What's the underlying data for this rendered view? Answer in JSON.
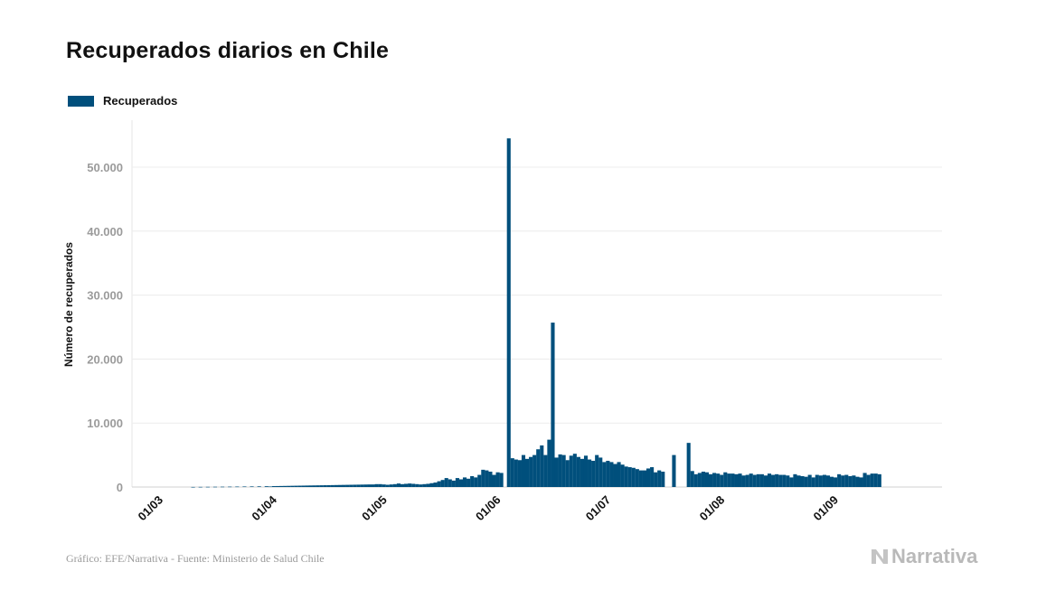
{
  "title": "Recuperados diarios en Chile",
  "legend": {
    "label": "Recuperados",
    "color": "#004f7c"
  },
  "footer": {
    "source": "Gráfico: EFE/Narrativa - Fuente: Ministerio de Salud Chile"
  },
  "logo": {
    "text": "Narrativa",
    "icon": "narrativa-logo-icon"
  },
  "chart_data": {
    "type": "bar",
    "ylabel": "Número de recuperados",
    "ylim": [
      0,
      57500
    ],
    "yticks": [
      0,
      10000,
      20000,
      30000,
      40000,
      50000
    ],
    "ytick_labels": [
      "0",
      "10.000",
      "20.000",
      "30.000",
      "40.000",
      "50.000"
    ],
    "xtick_labels": [
      "01/03",
      "01/04",
      "01/05",
      "01/06",
      "01/07",
      "01/08",
      "01/09"
    ],
    "xtick_dates": [
      "2020-03-01",
      "2020-04-01",
      "2020-05-01",
      "2020-06-01",
      "2020-07-01",
      "2020-08-01",
      "2020-09-01"
    ],
    "grid": true,
    "legend_position": "top-left",
    "series": [
      {
        "name": "Recuperados",
        "color": "#004f7c",
        "points": [
          [
            "2020-03-10",
            10
          ],
          [
            "2020-03-12",
            20
          ],
          [
            "2020-03-14",
            30
          ],
          [
            "2020-03-16",
            40
          ],
          [
            "2020-03-18",
            50
          ],
          [
            "2020-03-20",
            60
          ],
          [
            "2020-03-22",
            70
          ],
          [
            "2020-03-24",
            80
          ],
          [
            "2020-03-26",
            90
          ],
          [
            "2020-03-28",
            100
          ],
          [
            "2020-03-30",
            120
          ],
          [
            "2020-03-31",
            80
          ],
          [
            "2020-04-01",
            140
          ],
          [
            "2020-04-02",
            150
          ],
          [
            "2020-04-03",
            160
          ],
          [
            "2020-04-04",
            170
          ],
          [
            "2020-04-05",
            180
          ],
          [
            "2020-04-06",
            190
          ],
          [
            "2020-04-07",
            200
          ],
          [
            "2020-04-08",
            210
          ],
          [
            "2020-04-09",
            220
          ],
          [
            "2020-04-10",
            230
          ],
          [
            "2020-04-11",
            240
          ],
          [
            "2020-04-12",
            250
          ],
          [
            "2020-04-13",
            260
          ],
          [
            "2020-04-14",
            270
          ],
          [
            "2020-04-15",
            280
          ],
          [
            "2020-04-16",
            290
          ],
          [
            "2020-04-17",
            300
          ],
          [
            "2020-04-18",
            310
          ],
          [
            "2020-04-19",
            320
          ],
          [
            "2020-04-20",
            330
          ],
          [
            "2020-04-21",
            340
          ],
          [
            "2020-04-22",
            350
          ],
          [
            "2020-04-23",
            360
          ],
          [
            "2020-04-24",
            370
          ],
          [
            "2020-04-25",
            380
          ],
          [
            "2020-04-26",
            390
          ],
          [
            "2020-04-27",
            400
          ],
          [
            "2020-04-28",
            400
          ],
          [
            "2020-04-29",
            450
          ],
          [
            "2020-04-30",
            450
          ],
          [
            "2020-05-01",
            400
          ],
          [
            "2020-05-02",
            350
          ],
          [
            "2020-05-03",
            400
          ],
          [
            "2020-05-04",
            450
          ],
          [
            "2020-05-05",
            550
          ],
          [
            "2020-05-06",
            450
          ],
          [
            "2020-05-07",
            500
          ],
          [
            "2020-05-08",
            550
          ],
          [
            "2020-05-09",
            500
          ],
          [
            "2020-05-10",
            450
          ],
          [
            "2020-05-11",
            400
          ],
          [
            "2020-05-12",
            450
          ],
          [
            "2020-05-13",
            500
          ],
          [
            "2020-05-14",
            600
          ],
          [
            "2020-05-15",
            700
          ],
          [
            "2020-05-16",
            900
          ],
          [
            "2020-05-17",
            1100
          ],
          [
            "2020-05-18",
            1400
          ],
          [
            "2020-05-19",
            1200
          ],
          [
            "2020-05-20",
            1000
          ],
          [
            "2020-05-21",
            1400
          ],
          [
            "2020-05-22",
            1200
          ],
          [
            "2020-05-23",
            1500
          ],
          [
            "2020-05-24",
            1300
          ],
          [
            "2020-05-25",
            1700
          ],
          [
            "2020-05-26",
            1500
          ],
          [
            "2020-05-27",
            1900
          ],
          [
            "2020-05-28",
            2700
          ],
          [
            "2020-05-29",
            2600
          ],
          [
            "2020-05-30",
            2400
          ],
          [
            "2020-05-31",
            1900
          ],
          [
            "2020-06-01",
            2300
          ],
          [
            "2020-06-02",
            2200
          ],
          [
            "2020-06-04",
            54500
          ],
          [
            "2020-06-05",
            4500
          ],
          [
            "2020-06-06",
            4300
          ],
          [
            "2020-06-07",
            4200
          ],
          [
            "2020-06-08",
            5000
          ],
          [
            "2020-06-09",
            4400
          ],
          [
            "2020-06-10",
            4700
          ],
          [
            "2020-06-11",
            5000
          ],
          [
            "2020-06-12",
            5900
          ],
          [
            "2020-06-13",
            6500
          ],
          [
            "2020-06-14",
            5000
          ],
          [
            "2020-06-15",
            7400
          ],
          [
            "2020-06-16",
            25700
          ],
          [
            "2020-06-17",
            4600
          ],
          [
            "2020-06-18",
            5100
          ],
          [
            "2020-06-19",
            5000
          ],
          [
            "2020-06-20",
            4200
          ],
          [
            "2020-06-21",
            4900
          ],
          [
            "2020-06-22",
            5200
          ],
          [
            "2020-06-23",
            4700
          ],
          [
            "2020-06-24",
            4400
          ],
          [
            "2020-06-25",
            4900
          ],
          [
            "2020-06-26",
            4300
          ],
          [
            "2020-06-27",
            4100
          ],
          [
            "2020-06-28",
            5000
          ],
          [
            "2020-06-29",
            4600
          ],
          [
            "2020-06-30",
            3900
          ],
          [
            "2020-07-01",
            4100
          ],
          [
            "2020-07-02",
            3900
          ],
          [
            "2020-07-03",
            3600
          ],
          [
            "2020-07-04",
            3900
          ],
          [
            "2020-07-05",
            3500
          ],
          [
            "2020-07-06",
            3200
          ],
          [
            "2020-07-07",
            3100
          ],
          [
            "2020-07-08",
            3000
          ],
          [
            "2020-07-09",
            2800
          ],
          [
            "2020-07-10",
            2600
          ],
          [
            "2020-07-11",
            2600
          ],
          [
            "2020-07-12",
            2900
          ],
          [
            "2020-07-13",
            3100
          ],
          [
            "2020-07-14",
            2300
          ],
          [
            "2020-07-15",
            2600
          ],
          [
            "2020-07-16",
            2400
          ],
          [
            "2020-07-19",
            5000
          ],
          [
            "2020-07-23",
            6900
          ],
          [
            "2020-07-24",
            2500
          ],
          [
            "2020-07-25",
            2000
          ],
          [
            "2020-07-26",
            2200
          ],
          [
            "2020-07-27",
            2400
          ],
          [
            "2020-07-28",
            2300
          ],
          [
            "2020-07-29",
            2000
          ],
          [
            "2020-07-30",
            2200
          ],
          [
            "2020-07-31",
            2100
          ],
          [
            "2020-08-01",
            1900
          ],
          [
            "2020-08-02",
            2300
          ],
          [
            "2020-08-03",
            2100
          ],
          [
            "2020-08-04",
            2100
          ],
          [
            "2020-08-05",
            2000
          ],
          [
            "2020-08-06",
            2100
          ],
          [
            "2020-08-07",
            1800
          ],
          [
            "2020-08-08",
            1900
          ],
          [
            "2020-08-09",
            2100
          ],
          [
            "2020-08-10",
            1900
          ],
          [
            "2020-08-11",
            2000
          ],
          [
            "2020-08-12",
            2000
          ],
          [
            "2020-08-13",
            1800
          ],
          [
            "2020-08-14",
            2100
          ],
          [
            "2020-08-15",
            1900
          ],
          [
            "2020-08-16",
            2000
          ],
          [
            "2020-08-17",
            1900
          ],
          [
            "2020-08-18",
            1900
          ],
          [
            "2020-08-19",
            1800
          ],
          [
            "2020-08-20",
            1500
          ],
          [
            "2020-08-21",
            2000
          ],
          [
            "2020-08-22",
            1800
          ],
          [
            "2020-08-23",
            1700
          ],
          [
            "2020-08-24",
            1600
          ],
          [
            "2020-08-25",
            1900
          ],
          [
            "2020-08-26",
            1500
          ],
          [
            "2020-08-27",
            1900
          ],
          [
            "2020-08-28",
            1800
          ],
          [
            "2020-08-29",
            1900
          ],
          [
            "2020-08-30",
            1800
          ],
          [
            "2020-08-31",
            1600
          ],
          [
            "2020-09-01",
            1500
          ],
          [
            "2020-09-02",
            2000
          ],
          [
            "2020-09-03",
            1800
          ],
          [
            "2020-09-04",
            1900
          ],
          [
            "2020-09-05",
            1700
          ],
          [
            "2020-09-06",
            1800
          ],
          [
            "2020-09-07",
            1600
          ],
          [
            "2020-09-08",
            1500
          ],
          [
            "2020-09-09",
            2200
          ],
          [
            "2020-09-10",
            1900
          ],
          [
            "2020-09-11",
            2100
          ],
          [
            "2020-09-12",
            2100
          ],
          [
            "2020-09-13",
            2000
          ]
        ]
      }
    ]
  }
}
